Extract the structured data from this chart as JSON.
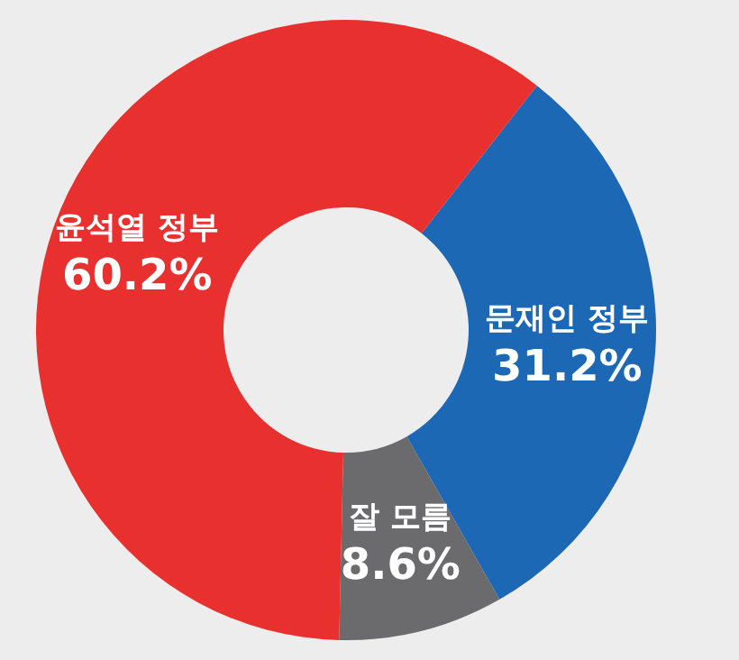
{
  "chart_data": {
    "type": "donut",
    "categories": [
      "문재인 정부",
      "잘 모름",
      "윤석열 정부"
    ],
    "values": [
      31.2,
      8.6,
      60.2
    ],
    "value_labels": [
      "31.2%",
      "8.6%",
      "60.2%"
    ],
    "colors": [
      "#1c68b4",
      "#6b6b6d",
      "#e8302e"
    ],
    "legend": false
  }
}
